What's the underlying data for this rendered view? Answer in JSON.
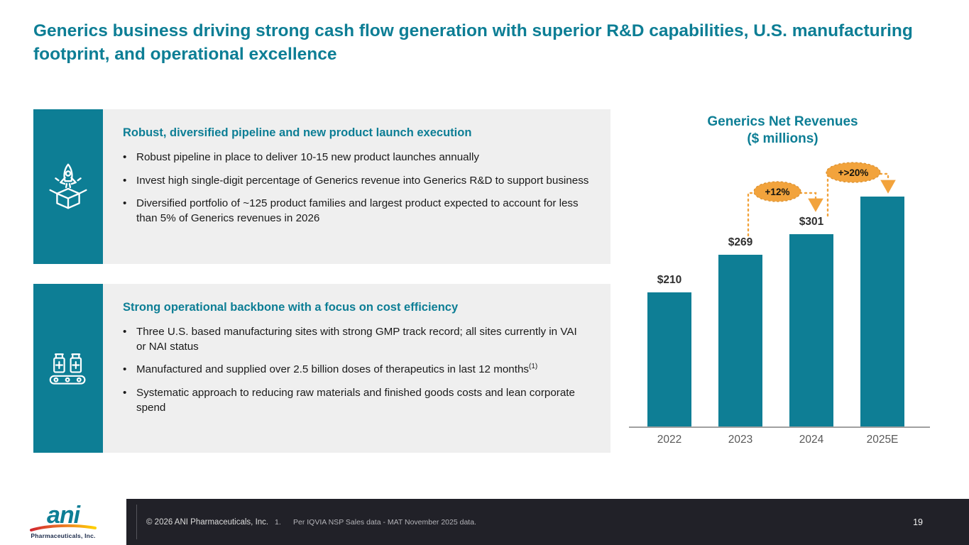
{
  "slide": {
    "title": "Generics business driving strong cash flow generation with superior R&D capabilities, U.S. manufacturing footprint, and operational excellence"
  },
  "features": [
    {
      "icon": "rocket-launch-box-icon",
      "heading": "Robust, diversified pipeline and new product launch execution",
      "bullets": [
        {
          "text": "Robust pipeline in place to deliver 10-15 new product launches annually"
        },
        {
          "text": "Invest high single-digit percentage of Generics revenue into Generics R&D to support business"
        },
        {
          "text": "Diversified portfolio of ~125 product families and largest product expected to account for less than 5% of Generics revenues in 2026"
        }
      ]
    },
    {
      "icon": "manufacturing-conveyor-icon",
      "heading": "Strong operational backbone with a focus on cost efficiency",
      "bullets": [
        {
          "text": "Three U.S. based manufacturing sites with strong GMP track record; all sites currently in VAI or NAI status"
        },
        {
          "text": "Manufactured and supplied over 2.5 billion doses of therapeutics in last 12 months",
          "sup": "(1)"
        },
        {
          "text": "Systematic approach to reducing raw materials and finished goods costs and lean corporate spend"
        }
      ]
    }
  ],
  "chart_data": {
    "type": "bar",
    "title": "Generics Net Revenues",
    "subtitle": "($ millions)",
    "categories": [
      "2022",
      "2023",
      "2024",
      "2025E"
    ],
    "values": [
      210,
      269,
      301,
      360
    ],
    "value_labels": [
      "$210",
      "$269",
      "$301",
      ""
    ],
    "ylim": [
      0,
      400
    ],
    "grid": false,
    "legend": "none",
    "bar_color": "#0E7E95",
    "annotations": [
      {
        "label": "+12%",
        "between": [
          "2023",
          "2024"
        ]
      },
      {
        "label": "+>20%",
        "between": [
          "2024",
          "2025E"
        ]
      }
    ]
  },
  "footer": {
    "logo": {
      "text": "ani",
      "subtext": "Pharmaceuticals, Inc."
    },
    "copyright": "© 2026 ANI Pharmaceuticals, Inc.",
    "footnote_marker": "1.",
    "footnote": "Per IQVIA NSP Sales data - MAT November 2025 data.",
    "page_number": "19"
  },
  "colors": {
    "brand_teal": "#0D7E95",
    "accent_orange": "#F2A33C"
  }
}
